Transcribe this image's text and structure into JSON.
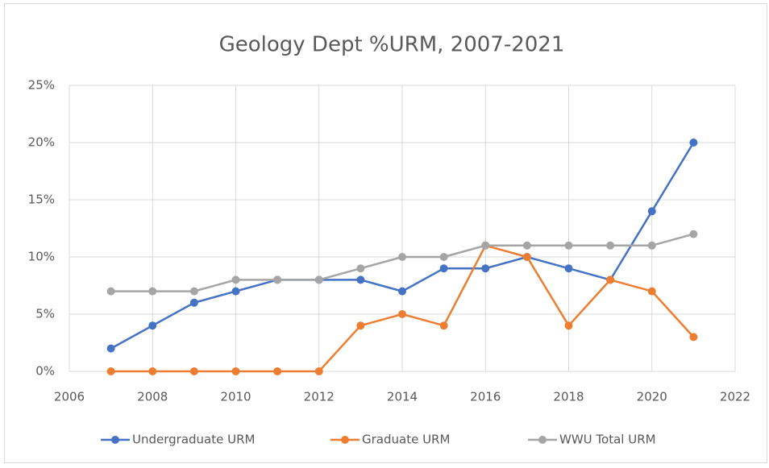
{
  "chart_data": {
    "type": "line",
    "title": "Geology Dept %URM, 2007-2021",
    "x": [
      2007,
      2008,
      2009,
      2010,
      2011,
      2012,
      2013,
      2014,
      2015,
      2016,
      2017,
      2018,
      2019,
      2020,
      2021
    ],
    "series": [
      {
        "name": "Undergraduate URM",
        "color": "#4472c4",
        "values": [
          2,
          4,
          6,
          7,
          8,
          8,
          8,
          7,
          9,
          9,
          10,
          9,
          8,
          14,
          20
        ]
      },
      {
        "name": "Graduate URM",
        "color": "#ed7d31",
        "values": [
          0,
          0,
          0,
          0,
          0,
          0,
          4,
          5,
          4,
          11,
          10,
          4,
          8,
          7,
          3
        ]
      },
      {
        "name": "WWU Total URM",
        "color": "#a5a5a5",
        "values": [
          7,
          7,
          7,
          8,
          8,
          8,
          9,
          10,
          10,
          11,
          11,
          11,
          11,
          11,
          12
        ]
      }
    ],
    "xlim": [
      2006,
      2022
    ],
    "xticks": [
      2006,
      2008,
      2010,
      2012,
      2014,
      2016,
      2018,
      2020,
      2022
    ],
    "ylim": [
      0,
      25
    ],
    "yticks": [
      {
        "value": 0,
        "label": "0%"
      },
      {
        "value": 5,
        "label": "5%"
      },
      {
        "value": 10,
        "label": "10%"
      },
      {
        "value": 15,
        "label": "15%"
      },
      {
        "value": 20,
        "label": "20%"
      },
      {
        "value": 25,
        "label": "25%"
      }
    ],
    "grid": true,
    "legend": "bottom"
  }
}
